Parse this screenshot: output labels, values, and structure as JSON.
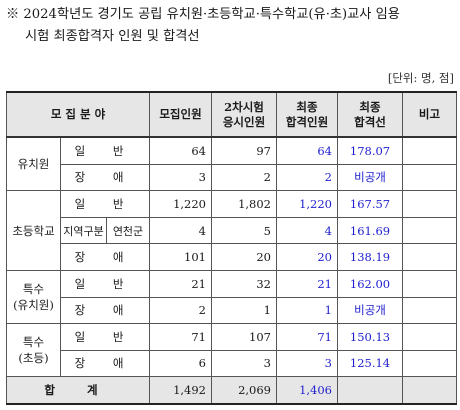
{
  "title": {
    "line1": "※ 2024학년도 경기도 공립 유치원·초등학교·특수학교(유·초)교사 임용",
    "line2": "시험 최종합격자 인원 및 합격선"
  },
  "unit": "[단위: 명, 점]",
  "headers": {
    "category": "모 집 분 야",
    "recruit": "모집인원",
    "second_exam_line1": "2차시험",
    "second_exam_line2": "응시인원",
    "final_pass_line1": "최종",
    "final_pass_line2": "합격인원",
    "final_cut_line1": "최종",
    "final_cut_line2": "합격선",
    "note": "비고"
  },
  "groups": [
    {
      "name_line1": "유치원",
      "name_line2": "",
      "rows": [
        {
          "sub": "일 반",
          "recruit": "64",
          "applicants": "97",
          "passed": "64",
          "cutline": "178.07",
          "note": ""
        },
        {
          "sub": "장 애",
          "recruit": "3",
          "applicants": "2",
          "passed": "2",
          "cutline": "비공개",
          "note": ""
        }
      ]
    },
    {
      "name_line1": "초등학교",
      "name_line2": "",
      "rows": [
        {
          "sub": "일 반",
          "recruit": "1,220",
          "applicants": "1,802",
          "passed": "1,220",
          "cutline": "167.57",
          "note": ""
        },
        {
          "sub_a": "지역구분",
          "sub_b": "연천군",
          "recruit": "4",
          "applicants": "5",
          "passed": "4",
          "cutline": "161.69",
          "note": ""
        },
        {
          "sub": "장 애",
          "recruit": "101",
          "applicants": "20",
          "passed": "20",
          "cutline": "138.19",
          "note": ""
        }
      ]
    },
    {
      "name_line1": "특수",
      "name_line2": "(유치원)",
      "rows": [
        {
          "sub": "일 반",
          "recruit": "21",
          "applicants": "32",
          "passed": "21",
          "cutline": "162.00",
          "note": ""
        },
        {
          "sub": "장 애",
          "recruit": "2",
          "applicants": "1",
          "passed": "1",
          "cutline": "비공개",
          "note": ""
        }
      ]
    },
    {
      "name_line1": "특수",
      "name_line2": "(초등)",
      "rows": [
        {
          "sub": "일 반",
          "recruit": "71",
          "applicants": "107",
          "passed": "71",
          "cutline": "150.13",
          "note": ""
        },
        {
          "sub": "장 애",
          "recruit": "6",
          "applicants": "3",
          "passed": "3",
          "cutline": "125.14",
          "note": ""
        }
      ]
    }
  ],
  "total": {
    "label": "합 계",
    "recruit": "1,492",
    "applicants": "2,069",
    "passed": "1,406",
    "cutline": "",
    "note": ""
  },
  "colors": {
    "emphasis": "#1f1fd0",
    "header_bg": "#e6e6e6"
  }
}
